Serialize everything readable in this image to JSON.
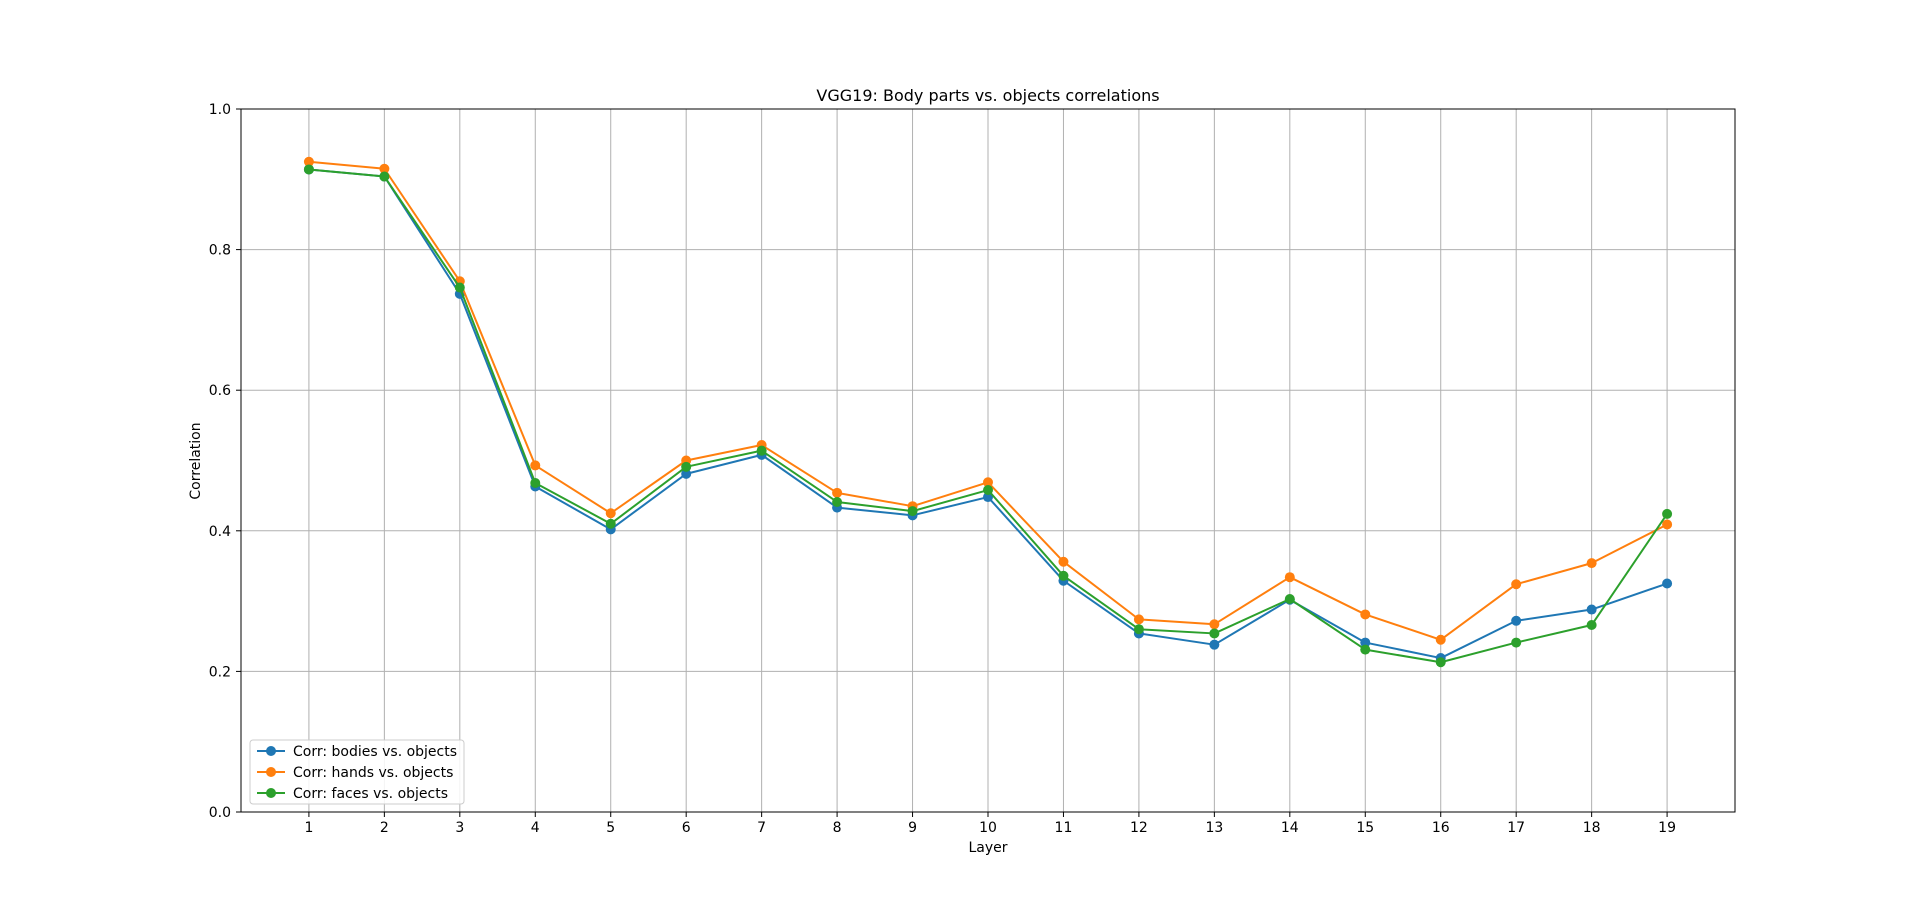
{
  "chart_data": {
    "type": "line",
    "title": "VGG19: Body parts vs. objects correlations",
    "xlabel": "Layer",
    "ylabel": "Correlation",
    "x": [
      1,
      2,
      3,
      4,
      5,
      6,
      7,
      8,
      9,
      10,
      11,
      12,
      13,
      14,
      15,
      16,
      17,
      18,
      19
    ],
    "xlim": [
      0.1,
      19.9
    ],
    "ylim": [
      0.0,
      1.0
    ],
    "yticks": [
      0.0,
      0.2,
      0.4,
      0.6,
      0.8,
      1.0
    ],
    "ytick_labels": [
      "0.0",
      "0.2",
      "0.4",
      "0.6",
      "0.8",
      "1.0"
    ],
    "grid": true,
    "legend_position": "lower-left",
    "series": [
      {
        "name": "Corr: bodies vs. objects",
        "color": "#1f77b4",
        "values": [
          0.914,
          0.904,
          0.737,
          0.463,
          0.402,
          0.481,
          0.508,
          0.433,
          0.422,
          0.448,
          0.329,
          0.254,
          0.238,
          0.302,
          0.241,
          0.219,
          0.272,
          0.288,
          0.325
        ]
      },
      {
        "name": "Corr: hands vs. objects",
        "color": "#ff7f0e",
        "values": [
          0.925,
          0.915,
          0.755,
          0.493,
          0.425,
          0.5,
          0.522,
          0.454,
          0.435,
          0.469,
          0.356,
          0.274,
          0.267,
          0.334,
          0.281,
          0.245,
          0.324,
          0.354,
          0.409
        ]
      },
      {
        "name": "Corr: faces vs. objects",
        "color": "#2ca02c",
        "values": [
          0.914,
          0.904,
          0.746,
          0.468,
          0.41,
          0.491,
          0.514,
          0.441,
          0.428,
          0.458,
          0.336,
          0.26,
          0.254,
          0.303,
          0.231,
          0.213,
          0.241,
          0.266,
          0.424
        ]
      }
    ]
  }
}
